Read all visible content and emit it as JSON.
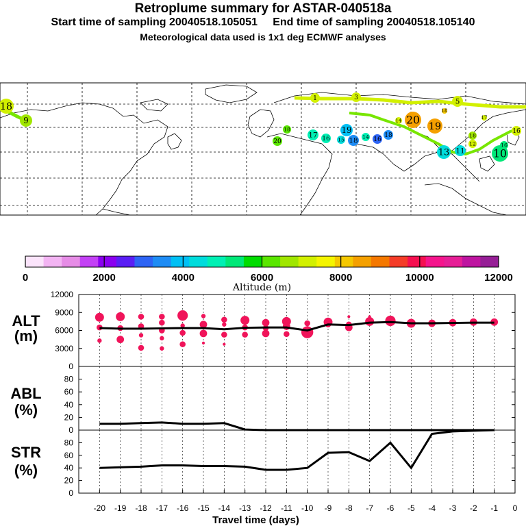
{
  "header": {
    "title": "Retroplume summary for ASTAR-040518a",
    "subtitle": "Start time of sampling 20040518.105051     End time of sampling 20040518.105140",
    "met_note": "Meteorological data used is 1x1 deg ECMWF analyses"
  },
  "colorbar": {
    "colors": [
      "#fbe4fb",
      "#f3b4f3",
      "#e68ce6",
      "#c341f5",
      "#8a00f0",
      "#5a1ef5",
      "#2d64f5",
      "#1e8cf5",
      "#00c0f5",
      "#00dcdc",
      "#00f0b4",
      "#00e878",
      "#00dc00",
      "#5ae600",
      "#a0e600",
      "#d2f000",
      "#f5f500",
      "#f5c800",
      "#f5a000",
      "#f57800",
      "#f53c28",
      "#f50f50",
      "#f5148c",
      "#e61e96",
      "#be14a0",
      "#961e96"
    ],
    "ticks": [
      "0",
      "2000",
      "4000",
      "6000",
      "8000",
      "10000",
      "12000"
    ],
    "label": "Altitude (m)"
  },
  "map_labels": [
    {
      "text": "20",
      "color": "#f5a000"
    },
    {
      "text": "19",
      "color": "#f5a000"
    },
    {
      "text": "19",
      "color": "#00c0f5"
    },
    {
      "text": "17",
      "color": "#00f0b4"
    },
    {
      "text": "16",
      "color": "#00f0b4"
    },
    {
      "text": "15",
      "color": "#00dcdc"
    },
    {
      "text": "18",
      "color": "#1e8cf5"
    },
    {
      "text": "14",
      "color": "#00f0b4"
    },
    {
      "text": "16",
      "color": "#2d64f5"
    },
    {
      "text": "18",
      "color": "#1e8cf5"
    },
    {
      "text": "20",
      "color": "#5ae600"
    },
    {
      "text": "18",
      "color": "#5ae600"
    },
    {
      "text": "13",
      "color": "#00dcdc"
    },
    {
      "text": "10",
      "color": "#00e878"
    },
    {
      "text": "11",
      "color": "#00dcdc"
    },
    {
      "text": "1",
      "color": "#d2f000"
    },
    {
      "text": "3",
      "color": "#d2f000"
    },
    {
      "text": "5",
      "color": "#d2f000"
    },
    {
      "text": "9",
      "color": "#a0e600"
    },
    {
      "text": "17",
      "color": "#d2f000"
    },
    {
      "text": "18",
      "color": "#f5c800"
    },
    {
      "text": "14",
      "color": "#d2f000"
    },
    {
      "text": "16",
      "color": "#d2f000"
    },
    {
      "text": "12",
      "color": "#d2f000"
    },
    {
      "text": "18",
      "color": "#a0e600"
    },
    {
      "text": "16",
      "color": "#00e878"
    },
    {
      "text": "18",
      "color": "#d2f000"
    }
  ],
  "chart_data": [
    {
      "type": "scatter",
      "panel_label": "ALT\n(m)",
      "x": [
        -20,
        -19,
        -18,
        -17,
        -16,
        -15,
        -14,
        -13,
        -12,
        -11,
        -10,
        -9,
        -8,
        -7,
        -6,
        -5,
        -4,
        -3,
        -2,
        -1
      ],
      "series": [
        {
          "name": "mean altitude",
          "type": "line",
          "color": "#000000",
          "values": [
            6400,
            6300,
            6300,
            6350,
            6400,
            6400,
            6200,
            6450,
            6500,
            6500,
            6000,
            7000,
            6900,
            7300,
            7400,
            7200,
            7200,
            7250,
            7300,
            7300
          ]
        },
        {
          "name": "plume clusters",
          "type": "scatter",
          "color": "#f0145a",
          "points": [
            {
              "x": -20,
              "y": 8200,
              "s": 5
            },
            {
              "x": -20,
              "y": 6500,
              "s": 3
            },
            {
              "x": -20,
              "y": 4300,
              "s": 2
            },
            {
              "x": -19,
              "y": 8300,
              "s": 5
            },
            {
              "x": -19,
              "y": 6400,
              "s": 3
            },
            {
              "x": -19,
              "y": 4500,
              "s": 4
            },
            {
              "x": -18,
              "y": 8300,
              "s": 3
            },
            {
              "x": -18,
              "y": 6700,
              "s": 3
            },
            {
              "x": -18,
              "y": 5200,
              "s": 2
            },
            {
              "x": -18,
              "y": 3100,
              "s": 3
            },
            {
              "x": -17,
              "y": 8300,
              "s": 3
            },
            {
              "x": -17,
              "y": 7300,
              "s": 3
            },
            {
              "x": -17,
              "y": 6000,
              "s": 3
            },
            {
              "x": -17,
              "y": 4700,
              "s": 2
            },
            {
              "x": -17,
              "y": 3000,
              "s": 2
            },
            {
              "x": -16,
              "y": 8500,
              "s": 6
            },
            {
              "x": -16,
              "y": 6800,
              "s": 2
            },
            {
              "x": -16,
              "y": 5600,
              "s": 3
            },
            {
              "x": -16,
              "y": 3700,
              "s": 3
            },
            {
              "x": -15,
              "y": 8400,
              "s": 2
            },
            {
              "x": -15,
              "y": 7000,
              "s": 4
            },
            {
              "x": -15,
              "y": 5500,
              "s": 4
            },
            {
              "x": -15,
              "y": 3900,
              "s": 1
            },
            {
              "x": -14,
              "y": 7800,
              "s": 3
            },
            {
              "x": -14,
              "y": 7000,
              "s": 2
            },
            {
              "x": -14,
              "y": 5300,
              "s": 3
            },
            {
              "x": -14,
              "y": 3700,
              "s": 1
            },
            {
              "x": -13,
              "y": 7700,
              "s": 5
            },
            {
              "x": -13,
              "y": 6500,
              "s": 3
            },
            {
              "x": -13,
              "y": 5300,
              "s": 3
            },
            {
              "x": -12,
              "y": 7300,
              "s": 4
            },
            {
              "x": -12,
              "y": 6400,
              "s": 3
            },
            {
              "x": -12,
              "y": 5500,
              "s": 4
            },
            {
              "x": -11,
              "y": 7500,
              "s": 5
            },
            {
              "x": -11,
              "y": 6700,
              "s": 4
            },
            {
              "x": -11,
              "y": 5400,
              "s": 3
            },
            {
              "x": -10,
              "y": 7200,
              "s": 3
            },
            {
              "x": -10,
              "y": 5700,
              "s": 7
            },
            {
              "x": -9,
              "y": 7400,
              "s": 5
            },
            {
              "x": -9,
              "y": 7000,
              "s": 3
            },
            {
              "x": -8,
              "y": 8300,
              "s": 1
            },
            {
              "x": -8,
              "y": 7000,
              "s": 3
            },
            {
              "x": -8,
              "y": 6500,
              "s": 4
            },
            {
              "x": -7,
              "y": 8300,
              "s": 1
            },
            {
              "x": -7,
              "y": 7500,
              "s": 5
            },
            {
              "x": -6,
              "y": 7600,
              "s": 6
            },
            {
              "x": -5,
              "y": 7200,
              "s": 5
            },
            {
              "x": -4,
              "y": 7200,
              "s": 4
            },
            {
              "x": -3,
              "y": 7300,
              "s": 4
            },
            {
              "x": -2,
              "y": 7400,
              "s": 4
            },
            {
              "x": -1,
              "y": 7400,
              "s": 4
            }
          ]
        }
      ],
      "ylim": [
        0,
        12000
      ],
      "yticks": [
        "0",
        "3000",
        "6000",
        "9000",
        "12000"
      ],
      "ytick_values": [
        0,
        3000,
        6000,
        9000,
        12000
      ]
    },
    {
      "type": "line",
      "panel_label": "ABL\n(%)",
      "x": [
        -20,
        -19,
        -18,
        -17,
        -16,
        -15,
        -14,
        -13,
        -12,
        -11,
        -10,
        -9,
        -8,
        -7,
        -6,
        -5,
        -4,
        -3,
        -2,
        -1
      ],
      "series": [
        {
          "name": "ABL fraction",
          "color": "#000000",
          "values": [
            10,
            10,
            11,
            12,
            10,
            10,
            11,
            1,
            0,
            0,
            0,
            0,
            0,
            0,
            0,
            0,
            0,
            0,
            0,
            0
          ]
        }
      ],
      "ylim": [
        0,
        100
      ],
      "yticks": [
        "0",
        "20",
        "40",
        "60",
        "80"
      ],
      "ytick_values": [
        0,
        20,
        40,
        60,
        80
      ]
    },
    {
      "type": "line",
      "panel_label": "STR\n(%)",
      "x": [
        -20,
        -19,
        -18,
        -17,
        -16,
        -15,
        -14,
        -13,
        -12,
        -11,
        -10,
        -9,
        -8,
        -7,
        -6,
        -5,
        -4,
        -3,
        -2,
        -1
      ],
      "series": [
        {
          "name": "stratospheric fraction",
          "color": "#000000",
          "values": [
            40,
            41,
            42,
            44,
            44,
            43,
            43,
            42,
            37,
            37,
            40,
            64,
            65,
            51,
            80,
            40,
            94,
            98,
            99,
            100
          ]
        }
      ],
      "ylim": [
        0,
        100
      ],
      "yticks": [
        "0",
        "20",
        "40",
        "60",
        "80"
      ],
      "ytick_values": [
        0,
        20,
        40,
        60,
        80
      ],
      "xticks": [
        "-20",
        "-19",
        "-18",
        "-17",
        "-16",
        "-15",
        "-14",
        "-13",
        "-12",
        "-11",
        "-10",
        "-9",
        "-8",
        "-7",
        "-6",
        "-5",
        "-4",
        "-3",
        "-2",
        "-1",
        "0"
      ],
      "xtick_values": [
        -20,
        -19,
        -18,
        -17,
        -16,
        -15,
        -14,
        -13,
        -12,
        -11,
        -10,
        -9,
        -8,
        -7,
        -6,
        -5,
        -4,
        -3,
        -2,
        -1,
        0
      ],
      "xlabel": "Travel time (days)"
    }
  ]
}
